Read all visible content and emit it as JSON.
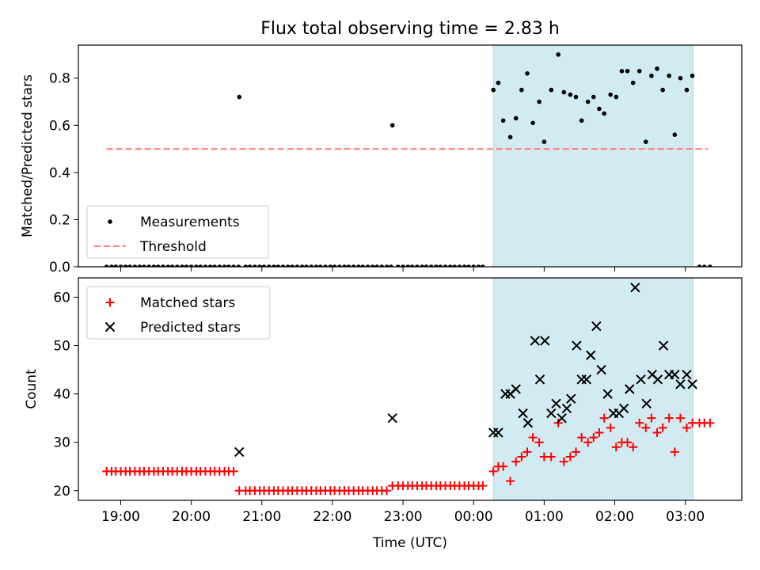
{
  "title": "Flux total observing time = 2.83 h",
  "colors": {
    "measurement": "#000000",
    "threshold": "#ff7f7f",
    "matched": "#ff0000",
    "predicted": "#000000",
    "span": "#add8e6"
  },
  "chart_data": [
    {
      "type": "scatter",
      "name": "top",
      "ylabel": "Matched/Predicted stars",
      "xlabel": "",
      "ylim": [
        0.0,
        0.94
      ],
      "yticks": [
        0.0,
        0.2,
        0.4,
        0.6,
        0.8
      ],
      "ytick_labels": [
        "0.0",
        "0.2",
        "0.4",
        "0.6",
        "0.8"
      ],
      "x_range_hours": [
        -5.6,
        3.8
      ],
      "shaded_span_hours": [
        0.28,
        3.11
      ],
      "legend": {
        "position": "lower-left",
        "entries": [
          "Measurements",
          "Threshold"
        ]
      },
      "threshold": {
        "label": "Threshold",
        "value": 0.5,
        "from": -5.2,
        "to": 3.32
      },
      "series": [
        {
          "name": "Measurements",
          "marker": "dot",
          "x": [
            -5.2,
            -5.13,
            -5.07,
            -5.0,
            -4.93,
            -4.87,
            -4.8,
            -4.73,
            -4.67,
            -4.6,
            -4.53,
            -4.47,
            -4.4,
            -4.33,
            -4.27,
            -4.2,
            -4.13,
            -4.07,
            -4.0,
            -3.93,
            -3.87,
            -3.8,
            -3.73,
            -3.67,
            -3.6,
            -3.53,
            -3.47,
            -3.4,
            -3.33,
            -3.32,
            -3.23,
            -3.17,
            -3.1,
            -3.03,
            -2.97,
            -2.9,
            -2.83,
            -2.77,
            -2.7,
            -2.63,
            -2.57,
            -2.5,
            -2.43,
            -2.37,
            -2.3,
            -2.23,
            -2.17,
            -2.1,
            -2.03,
            -1.97,
            -1.9,
            -1.83,
            -1.77,
            -1.7,
            -1.63,
            -1.57,
            -1.5,
            -1.43,
            -1.37,
            -1.3,
            -1.23,
            -1.17,
            -1.15,
            -1.07,
            -1.0,
            -0.93,
            -0.87,
            -0.8,
            -0.73,
            -0.67,
            -0.6,
            -0.53,
            -0.47,
            -0.4,
            -0.33,
            -0.27,
            -0.2,
            -0.13,
            -0.07,
            0.0,
            0.07,
            0.13,
            0.28,
            0.35,
            0.42,
            0.52,
            0.6,
            0.68,
            0.76,
            0.84,
            0.93,
            1.0,
            1.1,
            1.2,
            1.28,
            1.37,
            1.45,
            1.53,
            1.62,
            1.7,
            1.78,
            1.85,
            1.94,
            2.02,
            2.1,
            2.18,
            2.26,
            2.35,
            2.44,
            2.52,
            2.6,
            2.68,
            2.77,
            2.85,
            2.93,
            3.02,
            3.1,
            3.2,
            3.27,
            3.35
          ],
          "y": [
            0,
            0,
            0,
            0,
            0,
            0,
            0,
            0,
            0,
            0,
            0,
            0,
            0,
            0,
            0,
            0,
            0,
            0,
            0,
            0,
            0,
            0,
            0,
            0,
            0,
            0,
            0,
            0,
            0,
            0.72,
            0,
            0,
            0,
            0,
            0,
            0,
            0,
            0,
            0,
            0,
            0,
            0,
            0,
            0,
            0,
            0,
            0,
            0,
            0,
            0,
            0,
            0,
            0,
            0,
            0,
            0,
            0,
            0,
            0,
            0,
            0,
            0,
            0.6,
            0,
            0,
            0,
            0,
            0,
            0,
            0,
            0,
            0,
            0,
            0,
            0,
            0,
            0,
            0,
            0,
            0,
            0,
            0,
            0.75,
            0.78,
            0.62,
            0.55,
            0.63,
            0.75,
            0.82,
            0.61,
            0.7,
            0.53,
            0.75,
            0.9,
            0.74,
            0.73,
            0.72,
            0.62,
            0.7,
            0.72,
            0.67,
            0.65,
            0.73,
            0.72,
            0.83,
            0.83,
            0.78,
            0.83,
            0.53,
            0.81,
            0.84,
            0.75,
            0.81,
            0.56,
            0.8,
            0.75,
            0.81,
            0,
            0,
            0
          ]
        }
      ]
    },
    {
      "type": "scatter",
      "name": "bottom",
      "ylabel": "Count",
      "xlabel": "Time (UTC)",
      "ylim": [
        18,
        64
      ],
      "yticks": [
        20,
        30,
        40,
        50,
        60
      ],
      "ytick_labels": [
        "20",
        "30",
        "40",
        "50",
        "60"
      ],
      "x_range_hours": [
        -5.6,
        3.8
      ],
      "xticks": [
        -5,
        -4,
        -3,
        -2,
        -1,
        0,
        1,
        2,
        3
      ],
      "xtick_labels": [
        "19:00",
        "20:00",
        "21:00",
        "22:00",
        "23:00",
        "00:00",
        "01:00",
        "02:00",
        "03:00"
      ],
      "shaded_span_hours": [
        0.28,
        3.11
      ],
      "legend": {
        "position": "upper-left",
        "entries": [
          "Matched stars",
          "Predicted stars"
        ]
      },
      "series": [
        {
          "name": "Matched stars",
          "marker": "plus",
          "x": [
            -5.2,
            -5.13,
            -5.07,
            -5.0,
            -4.93,
            -4.87,
            -4.8,
            -4.73,
            -4.67,
            -4.6,
            -4.53,
            -4.47,
            -4.4,
            -4.33,
            -4.27,
            -4.2,
            -4.13,
            -4.07,
            -4.0,
            -3.93,
            -3.87,
            -3.8,
            -3.73,
            -3.67,
            -3.6,
            -3.53,
            -3.47,
            -3.4,
            -3.32,
            -3.23,
            -3.17,
            -3.1,
            -3.03,
            -2.97,
            -2.9,
            -2.83,
            -2.77,
            -2.7,
            -2.63,
            -2.57,
            -2.5,
            -2.43,
            -2.37,
            -2.3,
            -2.23,
            -2.17,
            -2.1,
            -2.03,
            -1.97,
            -1.9,
            -1.83,
            -1.77,
            -1.7,
            -1.63,
            -1.57,
            -1.5,
            -1.43,
            -1.37,
            -1.3,
            -1.23,
            -1.15,
            -1.07,
            -1.0,
            -0.93,
            -0.87,
            -0.8,
            -0.73,
            -0.67,
            -0.6,
            -0.53,
            -0.47,
            -0.4,
            -0.33,
            -0.27,
            -0.2,
            -0.13,
            -0.07,
            0.0,
            0.07,
            0.13,
            0.28,
            0.35,
            0.42,
            0.52,
            0.6,
            0.68,
            0.76,
            0.84,
            0.93,
            1.0,
            1.1,
            1.2,
            1.28,
            1.37,
            1.45,
            1.53,
            1.62,
            1.7,
            1.78,
            1.85,
            1.94,
            2.02,
            2.1,
            2.18,
            2.26,
            2.35,
            2.44,
            2.52,
            2.6,
            2.68,
            2.77,
            2.85,
            2.93,
            3.02,
            3.1,
            3.2,
            3.27,
            3.35
          ],
          "y": [
            24,
            24,
            24,
            24,
            24,
            24,
            24,
            24,
            24,
            24,
            24,
            24,
            24,
            24,
            24,
            24,
            24,
            24,
            24,
            24,
            24,
            24,
            24,
            24,
            24,
            24,
            24,
            24,
            20,
            20,
            20,
            20,
            20,
            20,
            20,
            20,
            20,
            20,
            20,
            20,
            20,
            20,
            20,
            20,
            20,
            20,
            20,
            20,
            20,
            20,
            20,
            20,
            20,
            20,
            20,
            20,
            20,
            20,
            20,
            20,
            21,
            21,
            21,
            21,
            21,
            21,
            21,
            21,
            21,
            21,
            21,
            21,
            21,
            21,
            21,
            21,
            21,
            21,
            21,
            21,
            24,
            25,
            25,
            22,
            26,
            27,
            28,
            31,
            30,
            27,
            27,
            34,
            26,
            27,
            28,
            31,
            30,
            31,
            32,
            35,
            33,
            29,
            30,
            30,
            29,
            34,
            33,
            35,
            32,
            33,
            35,
            28,
            35,
            33,
            34,
            34,
            34,
            34
          ]
        },
        {
          "name": "Predicted stars",
          "marker": "x",
          "x": [
            -3.32,
            -1.15,
            0.28,
            0.35,
            0.45,
            0.52,
            0.6,
            0.7,
            0.77,
            0.87,
            0.94,
            1.01,
            1.1,
            1.17,
            1.25,
            1.32,
            1.38,
            1.46,
            1.53,
            1.6,
            1.66,
            1.74,
            1.81,
            1.9,
            1.98,
            2.06,
            2.13,
            2.21,
            2.29,
            2.37,
            2.45,
            2.53,
            2.61,
            2.69,
            2.77,
            2.85,
            2.93,
            3.02,
            3.1
          ],
          "y": [
            28,
            35,
            32,
            32,
            40,
            40,
            41,
            36,
            34,
            51,
            43,
            51,
            36,
            38,
            35,
            37,
            39,
            50,
            43,
            43,
            48,
            54,
            45,
            40,
            36,
            36,
            37,
            41,
            62,
            43,
            38,
            44,
            43,
            50,
            44,
            44,
            42,
            44,
            42
          ]
        }
      ]
    }
  ],
  "xlabel_bottom": "Time (UTC)"
}
